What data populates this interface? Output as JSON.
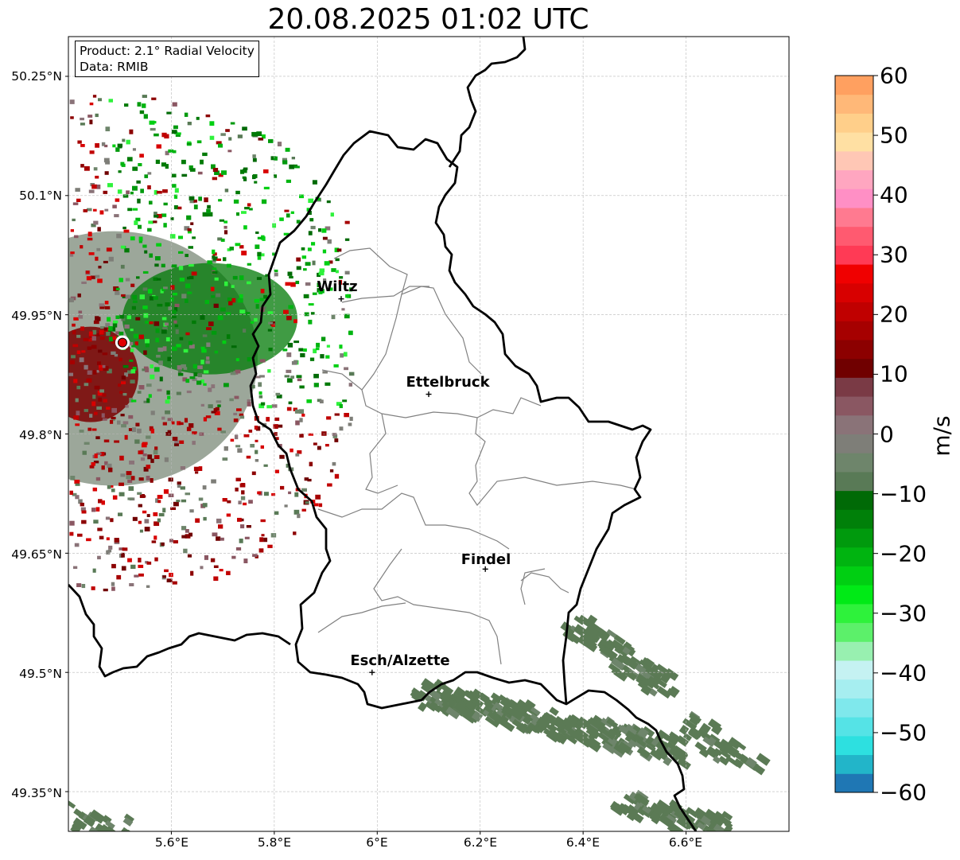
{
  "title": "20.08.2025 01:02 UTC",
  "info": {
    "product": "Product: 2.1° Radial Velocity",
    "source": "Data: RMIB"
  },
  "axes": {
    "lat_labels": [
      "50.25°N",
      "50.1°N",
      "49.95°N",
      "49.8°N",
      "49.65°N",
      "49.5°N",
      "49.35°N"
    ],
    "lat_values": [
      50.25,
      50.1,
      49.95,
      49.8,
      49.65,
      49.5,
      49.35
    ],
    "lon_labels": [
      "5.6°E",
      "5.8°E",
      "6°E",
      "6.2°E",
      "6.4°E",
      "6.6°E"
    ],
    "lon_values": [
      5.6,
      5.8,
      6.0,
      6.2,
      6.4,
      6.6
    ],
    "lat_range": [
      49.3,
      50.3
    ],
    "lon_range": [
      5.4,
      6.8
    ],
    "grid": true
  },
  "cities": [
    {
      "name": "Wiltz",
      "lon": 5.93,
      "lat": 49.97
    },
    {
      "name": "Ettelbruck",
      "lon": 6.1,
      "lat": 49.85
    },
    {
      "name": "Findel",
      "lon": 6.21,
      "lat": 49.63
    },
    {
      "name": "Esch/Alzette",
      "lon": 5.99,
      "lat": 49.5
    }
  ],
  "radar_site": {
    "lon": 5.505,
    "lat": 49.915
  },
  "colorbar": {
    "unit": "m/s",
    "min": -60,
    "max": 60,
    "tick_labels": [
      "60",
      "50",
      "40",
      "30",
      "20",
      "10",
      "0",
      "−10",
      "−20",
      "−30",
      "−40",
      "−50",
      "−60"
    ],
    "tick_values": [
      60,
      50,
      40,
      30,
      20,
      10,
      0,
      -10,
      -20,
      -30,
      -40,
      -50,
      -60
    ],
    "colors": [
      "#1f77b4",
      "#22b5c9",
      "#2de0e0",
      "#55e3e6",
      "#7fe8ec",
      "#a6eef0",
      "#c5f2f2",
      "#98f0b0",
      "#5cf06a",
      "#2ef23b",
      "#00ea16",
      "#00cf12",
      "#00b410",
      "#009a0d",
      "#008009",
      "#006a06",
      "#597a56",
      "#6e856b",
      "#7e7e78",
      "#8a7378",
      "#8a5762",
      "#7a3a45",
      "#700000",
      "#8c0000",
      "#a60000",
      "#c00000",
      "#d80000",
      "#f00000",
      "#ff3a55",
      "#ff5a70",
      "#ff7a90",
      "#ff8fc5",
      "#ffa6c0",
      "#ffc7b5",
      "#ffe0a3",
      "#ffcf8a",
      "#ffb878",
      "#ffa060"
    ]
  }
}
